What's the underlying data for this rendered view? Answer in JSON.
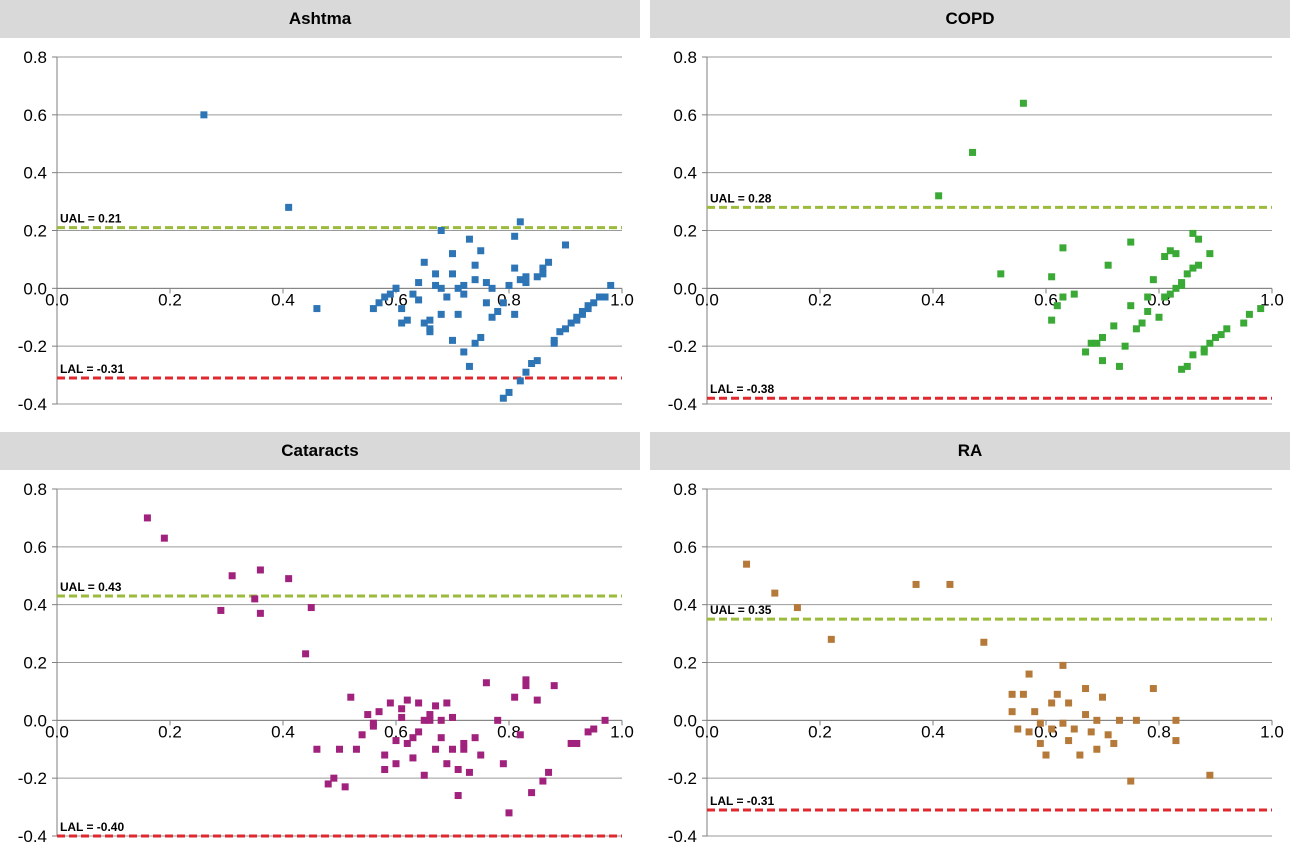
{
  "colors": {
    "grid": "#9a9a9a",
    "axis": "#7f7f7f",
    "ual_line": "#9bbb3b",
    "lal_line": "#e0292f",
    "title_bg": "#d9d9d9"
  },
  "chart_data": [
    {
      "type": "scatter",
      "title": "Ashtma",
      "color": "#2e75b6",
      "xlim": [
        0,
        1
      ],
      "ylim": [
        -0.4,
        0.8
      ],
      "xticks": [
        0.0,
        0.2,
        0.4,
        0.6,
        0.8,
        1.0
      ],
      "xtick_labels": [
        "0.0",
        "0.2",
        "0.4",
        "0.6",
        "0.8",
        "1.0"
      ],
      "yticks": [
        -0.4,
        -0.2,
        0.0,
        0.2,
        0.4,
        0.6,
        0.8
      ],
      "ytick_labels": [
        "-0.4",
        "-0.2",
        "0.0",
        "0.2",
        "0.4",
        "0.6",
        "0.8"
      ],
      "grid": true,
      "ual": 0.21,
      "ual_label": "UAL = 0.21",
      "lal": -0.31,
      "lal_label": "LAL = -0.31",
      "x": [
        0.26,
        0.41,
        0.46,
        0.56,
        0.57,
        0.58,
        0.59,
        0.6,
        0.61,
        0.61,
        0.62,
        0.63,
        0.64,
        0.65,
        0.65,
        0.66,
        0.66,
        0.67,
        0.67,
        0.68,
        0.68,
        0.69,
        0.7,
        0.7,
        0.71,
        0.71,
        0.72,
        0.72,
        0.73,
        0.73,
        0.74,
        0.74,
        0.75,
        0.75,
        0.76,
        0.76,
        0.77,
        0.78,
        0.79,
        0.79,
        0.8,
        0.81,
        0.81,
        0.81,
        0.82,
        0.82,
        0.83,
        0.83,
        0.84,
        0.85,
        0.85,
        0.86,
        0.87,
        0.88,
        0.88,
        0.89,
        0.9,
        0.9,
        0.91,
        0.92,
        0.92,
        0.93,
        0.93,
        0.94,
        0.94,
        0.95,
        0.96,
        0.97,
        0.98,
        0.68,
        0.74,
        0.82,
        0.86,
        0.64,
        0.7,
        0.72,
        0.77,
        0.8,
        0.83,
        0.6,
        0.66
      ],
      "y": [
        0.6,
        0.28,
        -0.07,
        -0.07,
        -0.05,
        -0.03,
        -0.02,
        0.0,
        -0.12,
        -0.07,
        -0.11,
        -0.02,
        -0.04,
        -0.12,
        0.09,
        -0.15,
        -0.11,
        0.05,
        0.01,
        -0.09,
        0.2,
        -0.03,
        -0.18,
        0.12,
        0.0,
        -0.09,
        -0.22,
        0.01,
        -0.27,
        0.17,
        -0.19,
        0.08,
        -0.17,
        0.13,
        -0.05,
        0.02,
        -0.1,
        -0.08,
        -0.38,
        -0.05,
        -0.36,
        0.18,
        -0.09,
        0.07,
        -0.32,
        0.23,
        -0.29,
        0.02,
        -0.26,
        0.04,
        -0.25,
        0.07,
        0.09,
        -0.18,
        -0.19,
        -0.15,
        -0.14,
        0.15,
        -0.12,
        -0.11,
        -0.1,
        -0.09,
        -0.08,
        -0.07,
        -0.06,
        -0.05,
        -0.03,
        -0.03,
        0.01,
        0.0,
        0.03,
        0.03,
        0.05,
        0.02,
        0.05,
        -0.02,
        0.0,
        0.01,
        0.04,
        0.0,
        -0.14
      ]
    },
    {
      "type": "scatter",
      "title": "COPD",
      "color": "#3aa936",
      "xlim": [
        0,
        1
      ],
      "ylim": [
        -0.4,
        0.8
      ],
      "xticks": [
        0.0,
        0.2,
        0.4,
        0.6,
        0.8,
        1.0
      ],
      "xtick_labels": [
        "0.0",
        "0.2",
        "0.4",
        "0.6",
        "0.8",
        "1.0"
      ],
      "yticks": [
        -0.4,
        -0.2,
        0.0,
        0.2,
        0.4,
        0.6,
        0.8
      ],
      "ytick_labels": [
        "-0.4",
        "-0.2",
        "0.0",
        "0.2",
        "0.4",
        "0.6",
        "0.8"
      ],
      "grid": true,
      "ual": 0.28,
      "ual_label": "UAL = 0.28",
      "lal": -0.38,
      "lal_label": "LAL = -0.38",
      "x": [
        0.41,
        0.47,
        0.52,
        0.56,
        0.61,
        0.61,
        0.62,
        0.63,
        0.63,
        0.65,
        0.67,
        0.68,
        0.69,
        0.7,
        0.7,
        0.71,
        0.72,
        0.73,
        0.74,
        0.75,
        0.75,
        0.76,
        0.77,
        0.78,
        0.78,
        0.79,
        0.8,
        0.81,
        0.81,
        0.82,
        0.82,
        0.83,
        0.83,
        0.84,
        0.84,
        0.85,
        0.85,
        0.86,
        0.86,
        0.87,
        0.87,
        0.88,
        0.88,
        0.89,
        0.89,
        0.9,
        0.91,
        0.92,
        0.95,
        0.96,
        0.98,
        0.84,
        0.86
      ],
      "y": [
        0.32,
        0.47,
        0.05,
        0.64,
        -0.11,
        0.04,
        -0.06,
        0.14,
        -0.03,
        -0.02,
        -0.22,
        -0.19,
        -0.19,
        -0.25,
        -0.17,
        0.08,
        -0.13,
        -0.27,
        -0.2,
        0.16,
        -0.06,
        -0.14,
        -0.12,
        -0.03,
        -0.08,
        0.03,
        -0.1,
        0.11,
        -0.03,
        0.13,
        -0.02,
        0.0,
        0.12,
        0.02,
        -0.28,
        -0.27,
        0.05,
        0.19,
        -0.23,
        0.08,
        0.17,
        -0.22,
        -0.21,
        0.12,
        -0.19,
        -0.17,
        -0.16,
        -0.14,
        -0.12,
        -0.09,
        -0.07,
        0.01,
        0.07
      ]
    },
    {
      "type": "scatter",
      "title": "Cataracts",
      "color": "#a0227d",
      "xlim": [
        0,
        1
      ],
      "ylim": [
        -0.4,
        0.8
      ],
      "xticks": [
        0.0,
        0.2,
        0.4,
        0.6,
        0.8,
        1.0
      ],
      "xtick_labels": [
        "0.0",
        "0.2",
        "0.4",
        "0.6",
        "0.8",
        "1.0"
      ],
      "yticks": [
        -0.4,
        -0.2,
        0.0,
        0.2,
        0.4,
        0.6,
        0.8
      ],
      "ytick_labels": [
        "-0.4",
        "-0.2",
        "0.0",
        "0.2",
        "0.4",
        "0.6",
        "0.8"
      ],
      "grid": true,
      "ual": 0.43,
      "ual_label": "UAL = 0.43",
      "lal": -0.4,
      "lal_label": "LAL = -0.40",
      "x": [
        0.16,
        0.19,
        0.29,
        0.31,
        0.35,
        0.36,
        0.36,
        0.41,
        0.44,
        0.45,
        0.46,
        0.48,
        0.49,
        0.5,
        0.51,
        0.52,
        0.53,
        0.54,
        0.55,
        0.56,
        0.56,
        0.57,
        0.58,
        0.58,
        0.59,
        0.6,
        0.6,
        0.61,
        0.61,
        0.62,
        0.62,
        0.63,
        0.63,
        0.64,
        0.64,
        0.65,
        0.65,
        0.66,
        0.66,
        0.67,
        0.67,
        0.68,
        0.68,
        0.69,
        0.69,
        0.7,
        0.7,
        0.71,
        0.71,
        0.72,
        0.72,
        0.73,
        0.74,
        0.75,
        0.76,
        0.78,
        0.79,
        0.8,
        0.81,
        0.82,
        0.83,
        0.83,
        0.84,
        0.85,
        0.86,
        0.87,
        0.88,
        0.91,
        0.92,
        0.94,
        0.95,
        0.97
      ],
      "y": [
        0.7,
        0.63,
        0.38,
        0.5,
        0.42,
        0.52,
        0.37,
        0.49,
        0.23,
        0.39,
        -0.1,
        -0.22,
        -0.2,
        -0.1,
        -0.23,
        0.08,
        -0.1,
        -0.05,
        0.02,
        -0.02,
        -0.01,
        0.03,
        -0.12,
        -0.17,
        0.06,
        -0.15,
        -0.07,
        0.01,
        0.04,
        -0.08,
        0.07,
        -0.13,
        -0.06,
        0.06,
        -0.04,
        0.0,
        -0.19,
        0.0,
        0.02,
        -0.1,
        0.05,
        -0.06,
        0.0,
        0.06,
        -0.15,
        0.01,
        -0.1,
        -0.26,
        -0.17,
        -0.08,
        -0.1,
        -0.18,
        -0.06,
        -0.12,
        0.13,
        0.0,
        -0.15,
        -0.32,
        0.08,
        -0.05,
        0.12,
        0.14,
        -0.25,
        0.07,
        -0.21,
        -0.18,
        0.12,
        -0.08,
        -0.08,
        -0.04,
        -0.03,
        0.0
      ]
    },
    {
      "type": "scatter",
      "title": "RA",
      "color": "#b57a3a",
      "xlim": [
        0,
        1
      ],
      "ylim": [
        -0.4,
        0.8
      ],
      "xticks": [
        0.0,
        0.2,
        0.4,
        0.6,
        0.8,
        1.0
      ],
      "xtick_labels": [
        "0.0",
        "0.2",
        "0.4",
        "0.6",
        "0.8",
        "1.0"
      ],
      "yticks": [
        -0.4,
        -0.2,
        0.0,
        0.2,
        0.4,
        0.6,
        0.8
      ],
      "ytick_labels": [
        "-0.4",
        "-0.2",
        "0.0",
        "0.2",
        "0.4",
        "0.6",
        "0.8"
      ],
      "grid": true,
      "ual": 0.35,
      "ual_label": "UAL = 0.35",
      "lal": -0.31,
      "lal_label": "LAL = -0.31",
      "x": [
        0.07,
        0.12,
        0.16,
        0.22,
        0.37,
        0.43,
        0.49,
        0.54,
        0.54,
        0.55,
        0.56,
        0.57,
        0.57,
        0.58,
        0.59,
        0.59,
        0.6,
        0.61,
        0.61,
        0.62,
        0.63,
        0.63,
        0.64,
        0.64,
        0.65,
        0.66,
        0.67,
        0.67,
        0.68,
        0.69,
        0.69,
        0.7,
        0.71,
        0.72,
        0.73,
        0.75,
        0.76,
        0.79,
        0.83,
        0.83,
        0.89
      ],
      "y": [
        0.54,
        0.44,
        0.39,
        0.28,
        0.47,
        0.47,
        0.27,
        0.09,
        0.03,
        -0.03,
        0.09,
        -0.04,
        0.16,
        0.03,
        -0.01,
        -0.08,
        -0.12,
        0.06,
        -0.03,
        0.09,
        0.19,
        -0.01,
        0.06,
        -0.07,
        -0.03,
        -0.12,
        0.02,
        0.11,
        -0.04,
        -0.1,
        0.0,
        0.08,
        -0.05,
        -0.08,
        0.0,
        -0.21,
        0.0,
        0.11,
        0.0,
        -0.07,
        -0.19
      ]
    }
  ]
}
